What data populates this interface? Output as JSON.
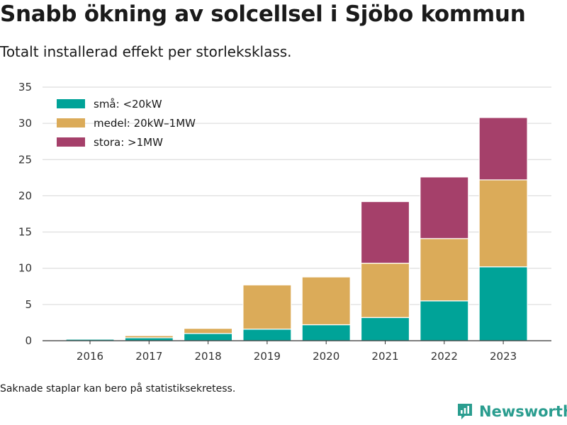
{
  "title": "Snabb ökning av solcellsel i Sjöbo kommun",
  "subtitle": "Totalt installerad effekt per storleksklass.",
  "footnote": "Saknade staplar kan bero på statistiksekretess.",
  "brand": {
    "name": "Newsworthy",
    "icon": "newsworthy-logo-icon",
    "color": "#2a9d8f"
  },
  "chart_data": {
    "type": "bar",
    "stacked": true,
    "categories": [
      "2016",
      "2017",
      "2018",
      "2019",
      "2020",
      "2021",
      "2022",
      "2023"
    ],
    "series": [
      {
        "name": "små: <20kW",
        "color": "#00a398",
        "values": [
          0.2,
          0.4,
          1.0,
          1.6,
          2.2,
          3.2,
          5.5,
          10.2
        ]
      },
      {
        "name": "medel: 20kW–1MW",
        "color": "#dbab59",
        "values": [
          0.0,
          0.3,
          0.7,
          6.1,
          6.6,
          7.5,
          8.6,
          12.0
        ]
      },
      {
        "name": "stora: >1MW",
        "color": "#a5406a",
        "values": [
          0.0,
          0.0,
          0.0,
          0.0,
          0.0,
          8.5,
          8.5,
          8.6
        ]
      }
    ],
    "ylim": [
      0,
      35
    ],
    "yticks": [
      0,
      5,
      10,
      15,
      20,
      25,
      30,
      35
    ],
    "grid": true,
    "legend": "top-left"
  }
}
